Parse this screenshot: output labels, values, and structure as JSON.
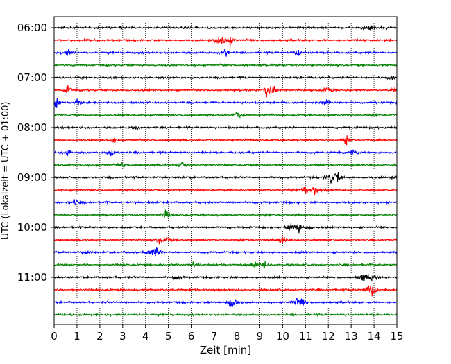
{
  "chart_data": {
    "type": "line",
    "chart_kind": "helicorder-seismogram",
    "xlabel": "Zeit  [min]",
    "ylabel": "UTC (Lokalzeit = UTC + 01:00)",
    "xlim": [
      0,
      15
    ],
    "x_ticks": [
      0,
      1,
      2,
      3,
      4,
      5,
      6,
      7,
      8,
      9,
      10,
      11,
      12,
      13,
      14,
      15
    ],
    "y_tick_labels": [
      "06:00",
      "07:00",
      "08:00",
      "09:00",
      "10:00",
      "11:00"
    ],
    "y_tick_line_index": [
      0,
      4,
      8,
      12,
      16,
      20
    ],
    "line_minutes": 15,
    "line_count": 24,
    "grid": "vertical dotted lines at each minute",
    "trace_colors": [
      "#000000",
      "#ff0000",
      "#0000ff",
      "#008000"
    ],
    "traces": [
      {
        "start": "06:00",
        "events": [
          [
            13.8,
            0.8
          ]
        ]
      },
      {
        "start": "06:15",
        "events": [
          [
            7.1,
            1.0
          ],
          [
            7.4,
            1.3
          ],
          [
            7.7,
            0.9
          ]
        ]
      },
      {
        "start": "06:30",
        "events": [
          [
            0.6,
            0.8
          ],
          [
            7.5,
            1.0
          ],
          [
            10.7,
            0.9
          ]
        ]
      },
      {
        "start": "06:45",
        "events": []
      },
      {
        "start": "07:00",
        "events": [
          [
            14.8,
            0.6
          ]
        ]
      },
      {
        "start": "07:15",
        "events": [
          [
            0.6,
            0.8
          ],
          [
            9.3,
            1.3
          ],
          [
            9.6,
            0.9
          ],
          [
            12.0,
            0.8
          ],
          [
            14.9,
            0.6
          ]
        ]
      },
      {
        "start": "07:30",
        "events": [
          [
            0.1,
            1.0
          ],
          [
            1.0,
            0.7
          ],
          [
            11.9,
            0.9
          ]
        ]
      },
      {
        "start": "07:45",
        "events": [
          [
            8.0,
            1.0
          ]
        ]
      },
      {
        "start": "08:00",
        "events": [
          [
            3.6,
            0.5
          ]
        ]
      },
      {
        "start": "08:15",
        "events": [
          [
            2.6,
            0.7
          ],
          [
            12.8,
            0.9
          ]
        ]
      },
      {
        "start": "08:30",
        "events": [
          [
            0.6,
            0.9
          ],
          [
            2.5,
            0.8
          ],
          [
            13.1,
            0.6
          ]
        ]
      },
      {
        "start": "08:45",
        "events": [
          [
            5.6,
            1.0
          ],
          [
            3.0,
            0.5
          ]
        ]
      },
      {
        "start": "09:00",
        "events": [
          [
            12.1,
            1.4
          ],
          [
            12.4,
            1.2
          ],
          [
            15.0,
            0.6
          ]
        ]
      },
      {
        "start": "09:15",
        "events": [
          [
            11.0,
            1.0
          ],
          [
            11.4,
            0.8
          ]
        ]
      },
      {
        "start": "09:30",
        "events": [
          [
            0.9,
            0.8
          ]
        ]
      },
      {
        "start": "09:45",
        "events": [
          [
            4.9,
            1.0
          ]
        ]
      },
      {
        "start": "10:00",
        "events": [
          [
            10.4,
            1.2
          ],
          [
            10.7,
            1.0
          ],
          [
            11.1,
            0.7
          ]
        ]
      },
      {
        "start": "10:15",
        "events": [
          [
            4.6,
            0.8
          ],
          [
            5.0,
            0.7
          ],
          [
            10.0,
            1.0
          ]
        ]
      },
      {
        "start": "10:30",
        "events": [
          [
            1.5,
            0.6
          ],
          [
            4.2,
            0.9
          ],
          [
            4.5,
            1.0
          ]
        ]
      },
      {
        "start": "10:45",
        "events": [
          [
            6.1,
            0.6
          ],
          [
            8.8,
            0.6
          ],
          [
            9.2,
            0.8
          ]
        ]
      },
      {
        "start": "11:00",
        "events": [
          [
            5.4,
            0.6
          ],
          [
            13.5,
            1.1
          ],
          [
            13.9,
            0.9
          ]
        ]
      },
      {
        "start": "11:15",
        "events": [
          [
            13.8,
            1.3
          ],
          [
            14.0,
            0.8
          ]
        ]
      },
      {
        "start": "11:30",
        "events": [
          [
            7.7,
            1.1
          ],
          [
            7.9,
            1.0
          ],
          [
            10.6,
            0.8
          ],
          [
            10.9,
            0.9
          ]
        ]
      },
      {
        "start": "11:45",
        "events": []
      }
    ]
  }
}
